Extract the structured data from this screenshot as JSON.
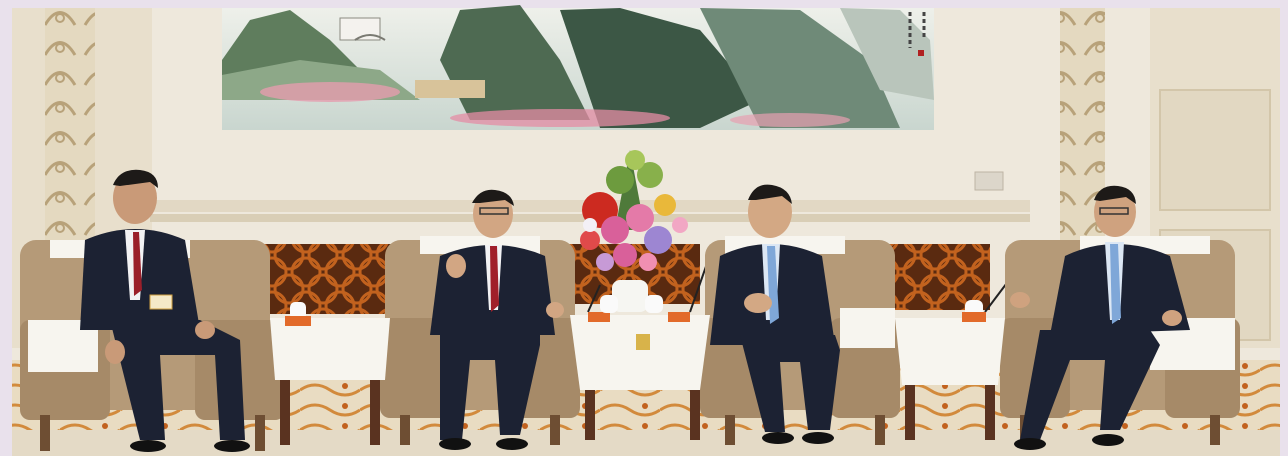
{
  "photo": {
    "painting_inscription": "",
    "colors": {
      "frame": "#e9e1ec",
      "wall": "#eee8dc",
      "wall_shadow": "#ddd4c4",
      "carved_pillar": "#d2c6aa",
      "lattice": "#c2621e",
      "lattice_dark": "#5a2a10",
      "carpet": "#e9dcc2",
      "carpet_pattern": "#d28a3c",
      "chair": "#b59a78",
      "chair_dark": "#6e4e33",
      "table_wood": "#5a3320",
      "lace": "#f7f5ef",
      "suit": "#1c2233",
      "flower_pink": "#d9609a",
      "flower_red": "#cc2a20",
      "flower_purple": "#9d86d2"
    }
  }
}
